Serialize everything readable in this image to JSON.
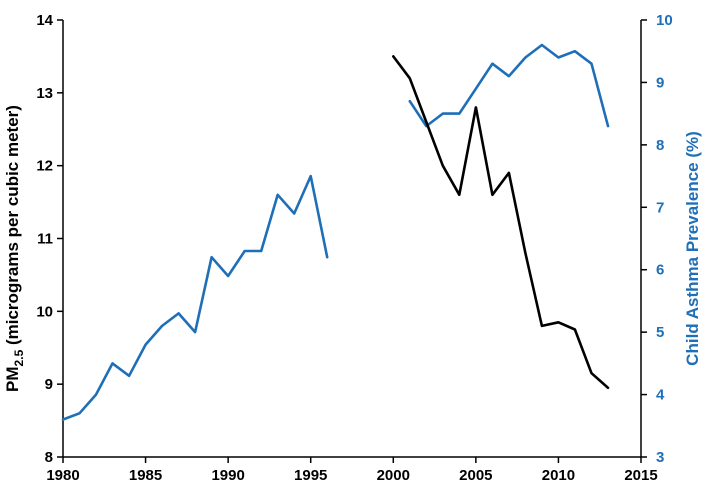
{
  "chart_data": {
    "type": "line",
    "title": "",
    "colors": {
      "pm25": "#000000",
      "asthma": "#1f6fb8",
      "axis": "#000000",
      "right_axis": "#1f6fb8"
    },
    "x_axis": {
      "min": 1980,
      "max": 2015,
      "ticks": [
        "1980",
        "1985",
        "1990",
        "1995",
        "2000",
        "2005",
        "2010",
        "2015"
      ]
    },
    "y_left": {
      "label_prefix": "PM",
      "label_subscript": "2.5",
      "label_rest": " (micrograms per cubic meter)",
      "min": 8,
      "max": 14,
      "ticks": [
        "8",
        "9",
        "10",
        "11",
        "12",
        "13",
        "14"
      ]
    },
    "y_right": {
      "label": "Child Asthma Prevalence (%)",
      "min": 3,
      "max": 10,
      "ticks": [
        "3",
        "4",
        "5",
        "6",
        "7",
        "8",
        "9",
        "10"
      ]
    },
    "series": [
      {
        "axis": "right",
        "color": "#1f6fb8",
        "x": [
          1980,
          1981,
          1982,
          1983,
          1984,
          1985,
          1986,
          1987,
          1988,
          1989,
          1990,
          1991,
          1992,
          1993,
          1994,
          1995,
          1996
        ],
        "y": [
          3.6,
          3.7,
          4.0,
          4.5,
          4.3,
          4.8,
          5.1,
          5.3,
          5.0,
          6.2,
          5.9,
          6.3,
          6.3,
          7.2,
          6.9,
          7.5,
          6.2
        ]
      },
      {
        "axis": "right",
        "color": "#1f6fb8",
        "x": [
          2001,
          2002,
          2003,
          2004,
          2005,
          2006,
          2007,
          2008,
          2009,
          2010,
          2011,
          2012,
          2013
        ],
        "y": [
          8.7,
          8.3,
          8.5,
          8.5,
          8.9,
          9.3,
          9.1,
          9.4,
          9.6,
          9.4,
          9.5,
          9.3,
          8.3
        ]
      },
      {
        "axis": "left",
        "color": "#000000",
        "x": [
          2000,
          2001,
          2002,
          2003,
          2004,
          2005,
          2006,
          2007,
          2008,
          2009,
          2010,
          2011,
          2012,
          2013
        ],
        "y": [
          13.5,
          13.2,
          12.6,
          12.0,
          11.6,
          12.8,
          11.6,
          11.9,
          10.8,
          9.8,
          9.85,
          9.75,
          9.15,
          8.95
        ]
      }
    ]
  }
}
